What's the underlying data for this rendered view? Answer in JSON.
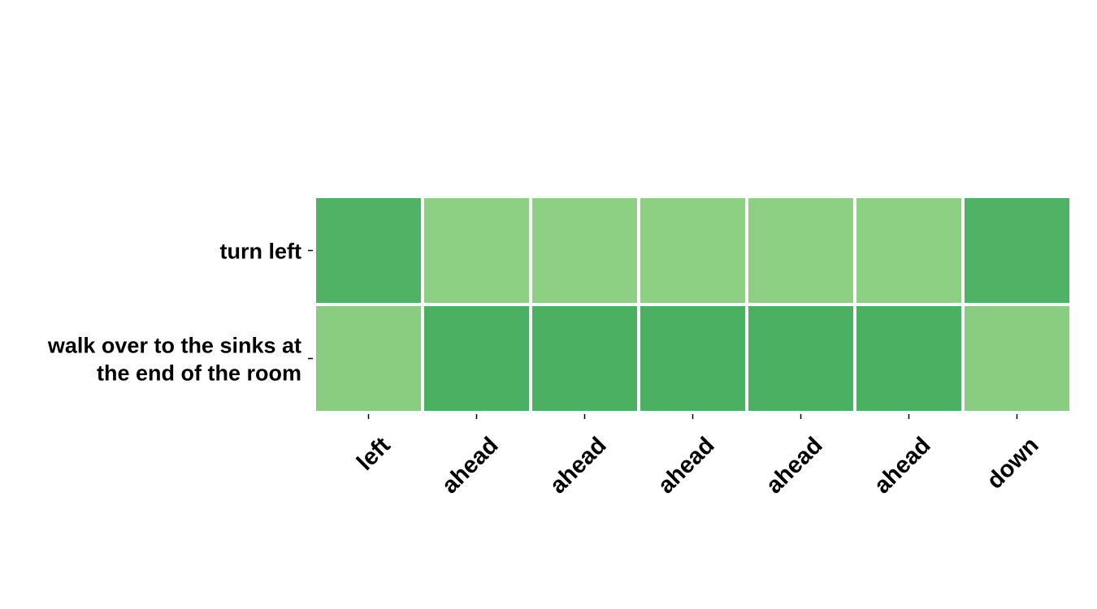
{
  "chart_data": {
    "type": "heatmap",
    "title": "",
    "xlabel": "",
    "ylabel": "",
    "rows": [
      [
        "turn left"
      ],
      [
        "walk over to the sinks at",
        "the end of the room"
      ]
    ],
    "columns": [
      "left",
      "ahead",
      "ahead",
      "ahead",
      "ahead",
      "ahead",
      "down"
    ],
    "values": [
      [
        0.85,
        0.25,
        0.25,
        0.25,
        0.25,
        0.25,
        0.85
      ],
      [
        0.3,
        0.9,
        0.9,
        0.9,
        0.9,
        0.9,
        0.3
      ]
    ],
    "color_scale": {
      "low": "#a8dc90",
      "high": "#41ab5d"
    },
    "grid": false,
    "legend": "none"
  }
}
